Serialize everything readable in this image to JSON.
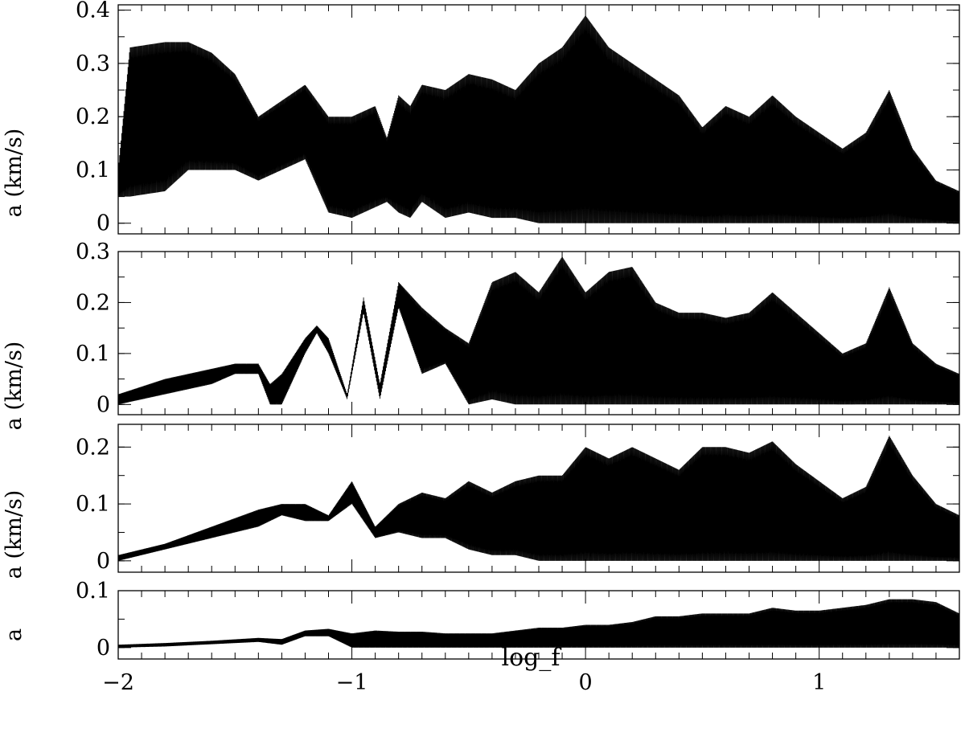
{
  "chart_data": [
    {
      "type": "line",
      "panel": 1,
      "ylabel": "a (km/s)",
      "xlabel": "",
      "xlim": [
        -2,
        1.6
      ],
      "ylim": [
        -0.02,
        0.41
      ],
      "yticks": [
        0,
        0.1,
        0.2,
        0.3,
        0.4
      ],
      "ytick_labels": [
        "0",
        "0.1",
        "0.2",
        "0.3",
        "0.4"
      ],
      "envelope": {
        "x": [
          -2.0,
          -1.95,
          -1.8,
          -1.7,
          -1.6,
          -1.5,
          -1.4,
          -1.3,
          -1.2,
          -1.1,
          -1.0,
          -0.9,
          -0.85,
          -0.8,
          -0.75,
          -0.7,
          -0.6,
          -0.5,
          -0.4,
          -0.3,
          -0.2,
          -0.1,
          0.0,
          0.1,
          0.2,
          0.3,
          0.4,
          0.5,
          0.6,
          0.7,
          0.8,
          0.9,
          1.0,
          1.1,
          1.2,
          1.3,
          1.4,
          1.5,
          1.6
        ],
        "upper": [
          0.1,
          0.33,
          0.34,
          0.34,
          0.32,
          0.28,
          0.2,
          0.23,
          0.26,
          0.2,
          0.2,
          0.22,
          0.16,
          0.24,
          0.22,
          0.26,
          0.25,
          0.28,
          0.27,
          0.25,
          0.3,
          0.33,
          0.39,
          0.33,
          0.3,
          0.27,
          0.24,
          0.18,
          0.22,
          0.2,
          0.24,
          0.2,
          0.17,
          0.14,
          0.17,
          0.25,
          0.14,
          0.08,
          0.06
        ],
        "lower": [
          0.05,
          0.05,
          0.06,
          0.1,
          0.1,
          0.1,
          0.08,
          0.1,
          0.12,
          0.02,
          0.01,
          0.03,
          0.04,
          0.02,
          0.01,
          0.04,
          0.01,
          0.02,
          0.01,
          0.01,
          0.0,
          0.0,
          0.0,
          0.0,
          0.0,
          0.0,
          0.0,
          0.0,
          0.0,
          0.0,
          0.0,
          0.0,
          0.0,
          0.0,
          0.0,
          0.0,
          0.0,
          0.0,
          0.0
        ]
      }
    },
    {
      "type": "line",
      "panel": 2,
      "ylabel": "a (km/s)",
      "xlabel": "",
      "xlim": [
        -2,
        1.6
      ],
      "ylim": [
        -0.02,
        0.3
      ],
      "yticks": [
        0,
        0.1,
        0.2,
        0.3
      ],
      "ytick_labels": [
        "0",
        "0.1",
        "0.2",
        "0.3"
      ],
      "envelope": {
        "x": [
          -2.0,
          -1.8,
          -1.6,
          -1.5,
          -1.4,
          -1.35,
          -1.3,
          -1.2,
          -1.15,
          -1.1,
          -1.02,
          -0.95,
          -0.88,
          -0.8,
          -0.7,
          -0.6,
          -0.5,
          -0.4,
          -0.3,
          -0.2,
          -0.1,
          0.0,
          0.1,
          0.2,
          0.3,
          0.4,
          0.5,
          0.6,
          0.7,
          0.8,
          0.9,
          1.0,
          1.1,
          1.2,
          1.3,
          1.4,
          1.5,
          1.6
        ],
        "upper": [
          0.02,
          0.05,
          0.07,
          0.08,
          0.08,
          0.04,
          0.06,
          0.13,
          0.155,
          0.13,
          0.02,
          0.21,
          0.04,
          0.24,
          0.19,
          0.15,
          0.12,
          0.24,
          0.26,
          0.22,
          0.29,
          0.22,
          0.26,
          0.27,
          0.2,
          0.18,
          0.18,
          0.17,
          0.18,
          0.22,
          0.18,
          0.14,
          0.1,
          0.12,
          0.23,
          0.12,
          0.08,
          0.06
        ],
        "lower": [
          0.0,
          0.02,
          0.04,
          0.06,
          0.06,
          0.0,
          0.0,
          0.1,
          0.14,
          0.1,
          0.01,
          0.18,
          0.01,
          0.19,
          0.06,
          0.08,
          0.0,
          0.01,
          0.0,
          0.0,
          0.0,
          0.0,
          0.0,
          0.0,
          0.0,
          0.0,
          0.0,
          0.0,
          0.0,
          0.0,
          0.0,
          0.0,
          0.0,
          0.0,
          0.0,
          0.0,
          0.0,
          0.0
        ]
      }
    },
    {
      "type": "line",
      "panel": 3,
      "ylabel": "a (km/s)",
      "xlabel": "",
      "xlim": [
        -2,
        1.6
      ],
      "ylim": [
        -0.02,
        0.24
      ],
      "yticks": [
        0,
        0.1,
        0.2
      ],
      "ytick_labels": [
        "0",
        "0.1",
        "0.2"
      ],
      "envelope": {
        "x": [
          -2.0,
          -1.8,
          -1.6,
          -1.4,
          -1.3,
          -1.2,
          -1.1,
          -1.0,
          -0.9,
          -0.8,
          -0.7,
          -0.6,
          -0.5,
          -0.4,
          -0.3,
          -0.2,
          -0.1,
          0.0,
          0.1,
          0.2,
          0.3,
          0.4,
          0.5,
          0.6,
          0.7,
          0.8,
          0.9,
          1.0,
          1.1,
          1.2,
          1.3,
          1.4,
          1.5,
          1.6
        ],
        "upper": [
          0.01,
          0.03,
          0.06,
          0.09,
          0.1,
          0.1,
          0.08,
          0.14,
          0.06,
          0.1,
          0.12,
          0.11,
          0.14,
          0.12,
          0.14,
          0.15,
          0.15,
          0.2,
          0.18,
          0.2,
          0.18,
          0.16,
          0.2,
          0.2,
          0.19,
          0.21,
          0.17,
          0.14,
          0.11,
          0.13,
          0.22,
          0.15,
          0.1,
          0.08
        ],
        "lower": [
          0.0,
          0.02,
          0.04,
          0.06,
          0.08,
          0.07,
          0.07,
          0.1,
          0.04,
          0.05,
          0.04,
          0.04,
          0.02,
          0.01,
          0.01,
          0.0,
          0.0,
          0.0,
          0.0,
          0.0,
          0.0,
          0.0,
          0.0,
          0.0,
          0.0,
          0.0,
          0.0,
          0.0,
          0.0,
          0.0,
          0.0,
          0.0,
          0.0,
          0.0
        ]
      }
    },
    {
      "type": "line",
      "panel": 4,
      "ylabel": "a",
      "xlabel": "log_f",
      "xlim": [
        -2,
        1.6
      ],
      "ylim": [
        -0.02,
        0.1
      ],
      "yticks": [
        0,
        0.1
      ],
      "ytick_labels": [
        "0",
        "0.1"
      ],
      "xticks": [
        -2,
        -1,
        0,
        1
      ],
      "xtick_labels": [
        "−2",
        "−1",
        "0",
        "1"
      ],
      "envelope": {
        "x": [
          -2.0,
          -1.8,
          -1.6,
          -1.4,
          -1.3,
          -1.2,
          -1.1,
          -1.0,
          -0.9,
          -0.8,
          -0.7,
          -0.6,
          -0.5,
          -0.4,
          -0.3,
          -0.2,
          -0.1,
          0.0,
          0.1,
          0.2,
          0.3,
          0.4,
          0.5,
          0.6,
          0.7,
          0.8,
          0.9,
          1.0,
          1.1,
          1.2,
          1.3,
          1.4,
          1.5,
          1.6
        ],
        "upper": [
          0.005,
          0.008,
          0.012,
          0.017,
          0.015,
          0.03,
          0.033,
          0.025,
          0.03,
          0.028,
          0.028,
          0.025,
          0.025,
          0.025,
          0.03,
          0.035,
          0.035,
          0.04,
          0.04,
          0.045,
          0.055,
          0.055,
          0.06,
          0.06,
          0.06,
          0.07,
          0.065,
          0.065,
          0.07,
          0.075,
          0.085,
          0.085,
          0.08,
          0.06
        ],
        "lower": [
          0.0,
          0.002,
          0.006,
          0.01,
          0.005,
          0.02,
          0.02,
          0.0,
          0.0,
          0.0,
          0.0,
          0.0,
          0.0,
          0.0,
          0.0,
          0.0,
          0.0,
          0.0,
          0.0,
          0.0,
          0.0,
          0.0,
          0.0,
          0.0,
          0.0,
          0.0,
          0.0,
          0.0,
          0.0,
          0.0,
          0.0,
          0.0,
          0.0,
          0.0
        ]
      }
    }
  ]
}
